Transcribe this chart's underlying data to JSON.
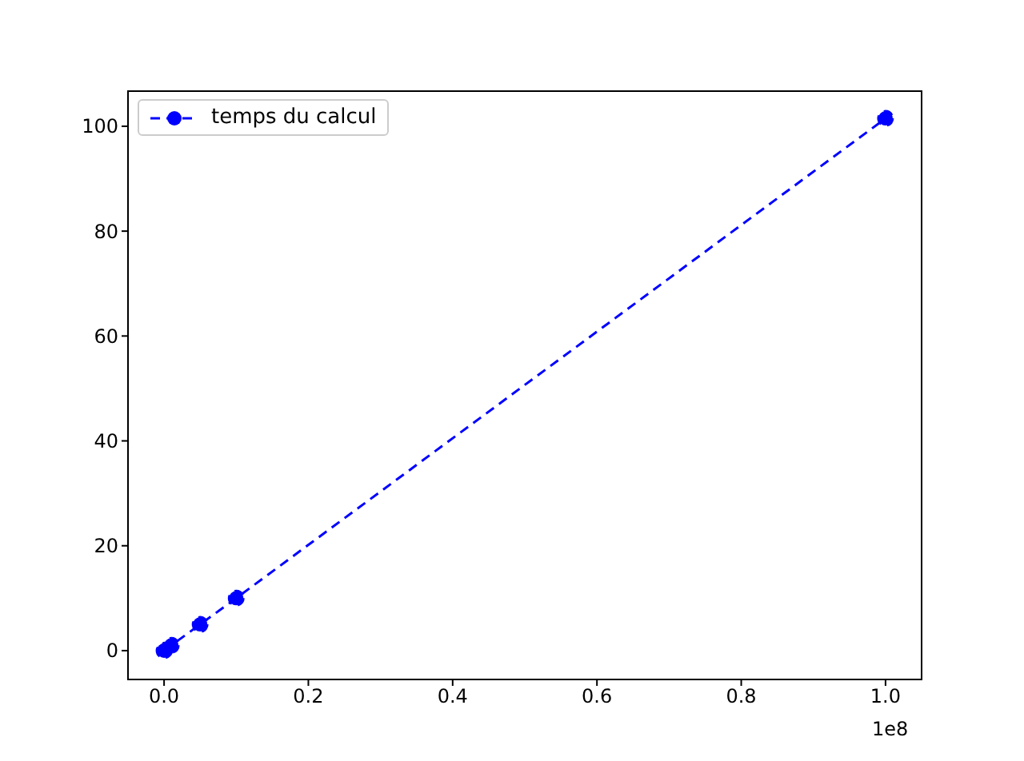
{
  "chart_data": {
    "type": "line",
    "x": [
      0,
      0.001,
      0.01,
      0.05,
      0.1,
      1
    ],
    "series": [
      {
        "name": "temps du calcul",
        "color": "#0000ff",
        "values": [
          0,
          0.1,
          1,
          5,
          10,
          101.5
        ]
      }
    ],
    "xlim": [
      -0.05,
      1.05
    ],
    "xticks": [
      {
        "value": 0,
        "label": "0.0"
      },
      0.2,
      0.4,
      0.6,
      0.8,
      {
        "value": 1,
        "label": "1.0"
      }
    ],
    "ylim": [
      -5.5,
      106.7
    ],
    "yticks": [
      0,
      20,
      40,
      60,
      80,
      100
    ],
    "annotations": [
      "1e8"
    ],
    "grid": false,
    "legend": "top left",
    "marker": "circle",
    "line_style": "dashed"
  }
}
